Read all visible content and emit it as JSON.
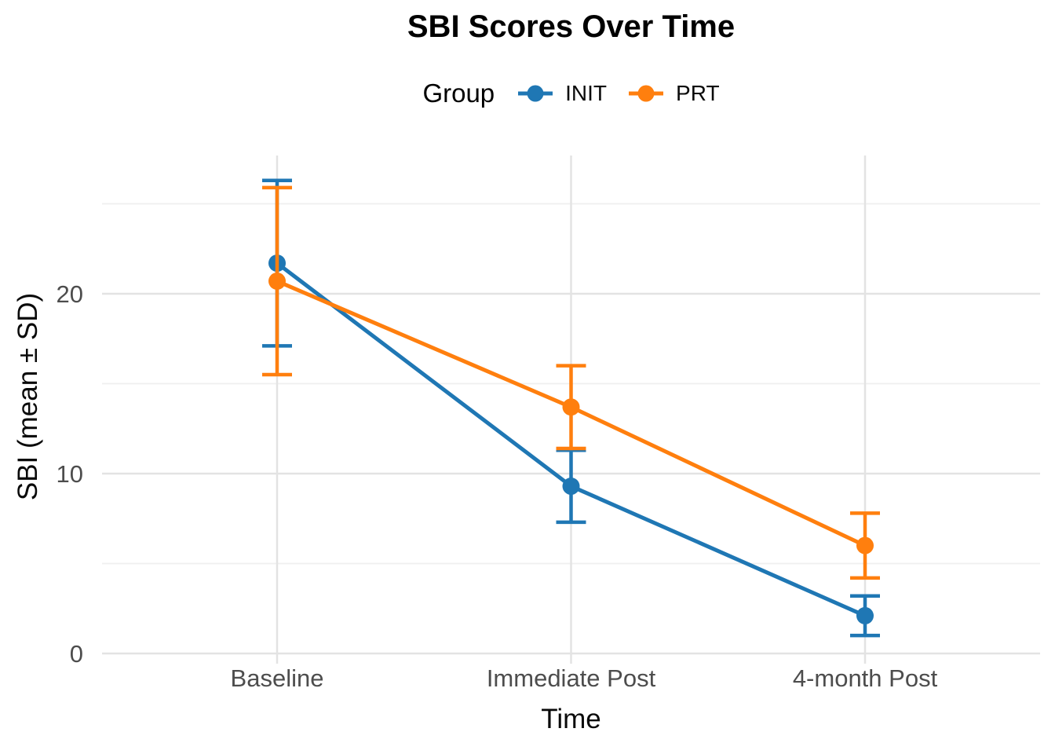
{
  "chart_data": {
    "type": "line",
    "title": "SBI Scores Over Time",
    "xlabel": "Time",
    "ylabel": "SBI (mean ± SD)",
    "legend_title": "Group",
    "legend_position": "top-center",
    "categories": [
      "Baseline",
      "Immediate Post",
      "4-month Post"
    ],
    "series": [
      {
        "name": "INIT",
        "color": "#1F77B4",
        "means": [
          21.7,
          9.3,
          2.1
        ],
        "sd": [
          4.6,
          2.0,
          1.1
        ]
      },
      {
        "name": "PRT",
        "color": "#FF7F0E",
        "means": [
          20.7,
          13.7,
          6.0
        ],
        "sd": [
          5.2,
          2.3,
          1.8
        ]
      }
    ],
    "error_bars": "mean ± SD, capped",
    "ylim": [
      -0.6,
      27.7
    ],
    "yticks": [
      0,
      10,
      20
    ],
    "yticks_minor": [
      5,
      15,
      25
    ],
    "grid": "horizontal major+minor and vertical category gridlines, light gray on white, no axis lines"
  },
  "colors": {
    "background": "#FFFFFF",
    "init_series": "#1F77B4",
    "prt_series": "#FF7F0E",
    "axis_text": "#4D4D4D",
    "title_text": "#000000",
    "grid_major": "#E3E3E3",
    "grid_minor": "#EFEFEF"
  }
}
